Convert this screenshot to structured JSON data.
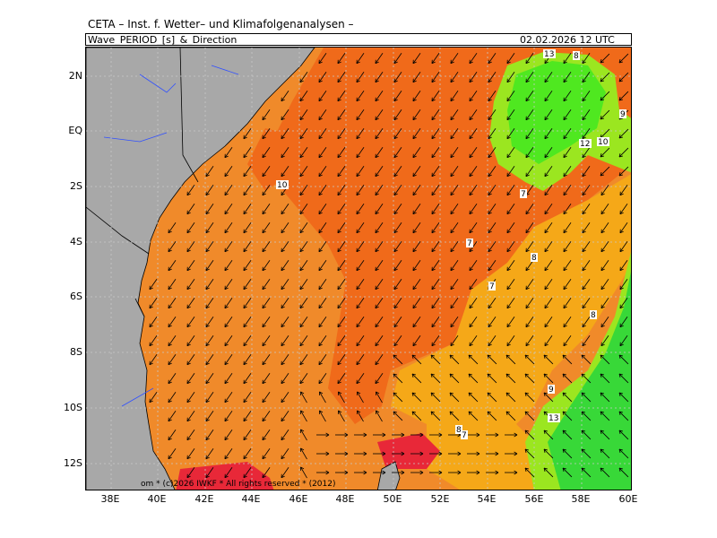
{
  "header": {
    "institute": "CETA – Inst. f. Wetter– und Klimafolgenanalysen –",
    "product": "Wave_PERIOD_[s]_&_Direction",
    "datetime": "02.02.2026  12 UTC"
  },
  "axes": {
    "lat_labels": [
      "2N",
      "EQ",
      "2S",
      "4S",
      "6S",
      "8S",
      "10S",
      "12S"
    ],
    "lon_labels": [
      "38E",
      "40E",
      "42E",
      "44E",
      "46E",
      "48E",
      "50E",
      "52E",
      "54E",
      "56E",
      "58E",
      "60E"
    ]
  },
  "contour_labels": [
    "13",
    "8",
    "9",
    "12",
    "10",
    "7",
    "10",
    "7",
    "8",
    "7",
    "8",
    "9",
    "13",
    "8",
    "7"
  ],
  "copyright": "om * (c)2026 IWKF * All rights reserved * (2012)",
  "colors": {
    "land": "#a8a8a8",
    "period_6_7": "#f08a2a",
    "period_7_8": "#f06a1a",
    "period_8_9": "#f5a818",
    "period_10_11": "#9be620",
    "period_11_12": "#4fe820",
    "period_high": "#38d838",
    "period_low": "#e82838",
    "period_shelf": "#f0c000"
  }
}
